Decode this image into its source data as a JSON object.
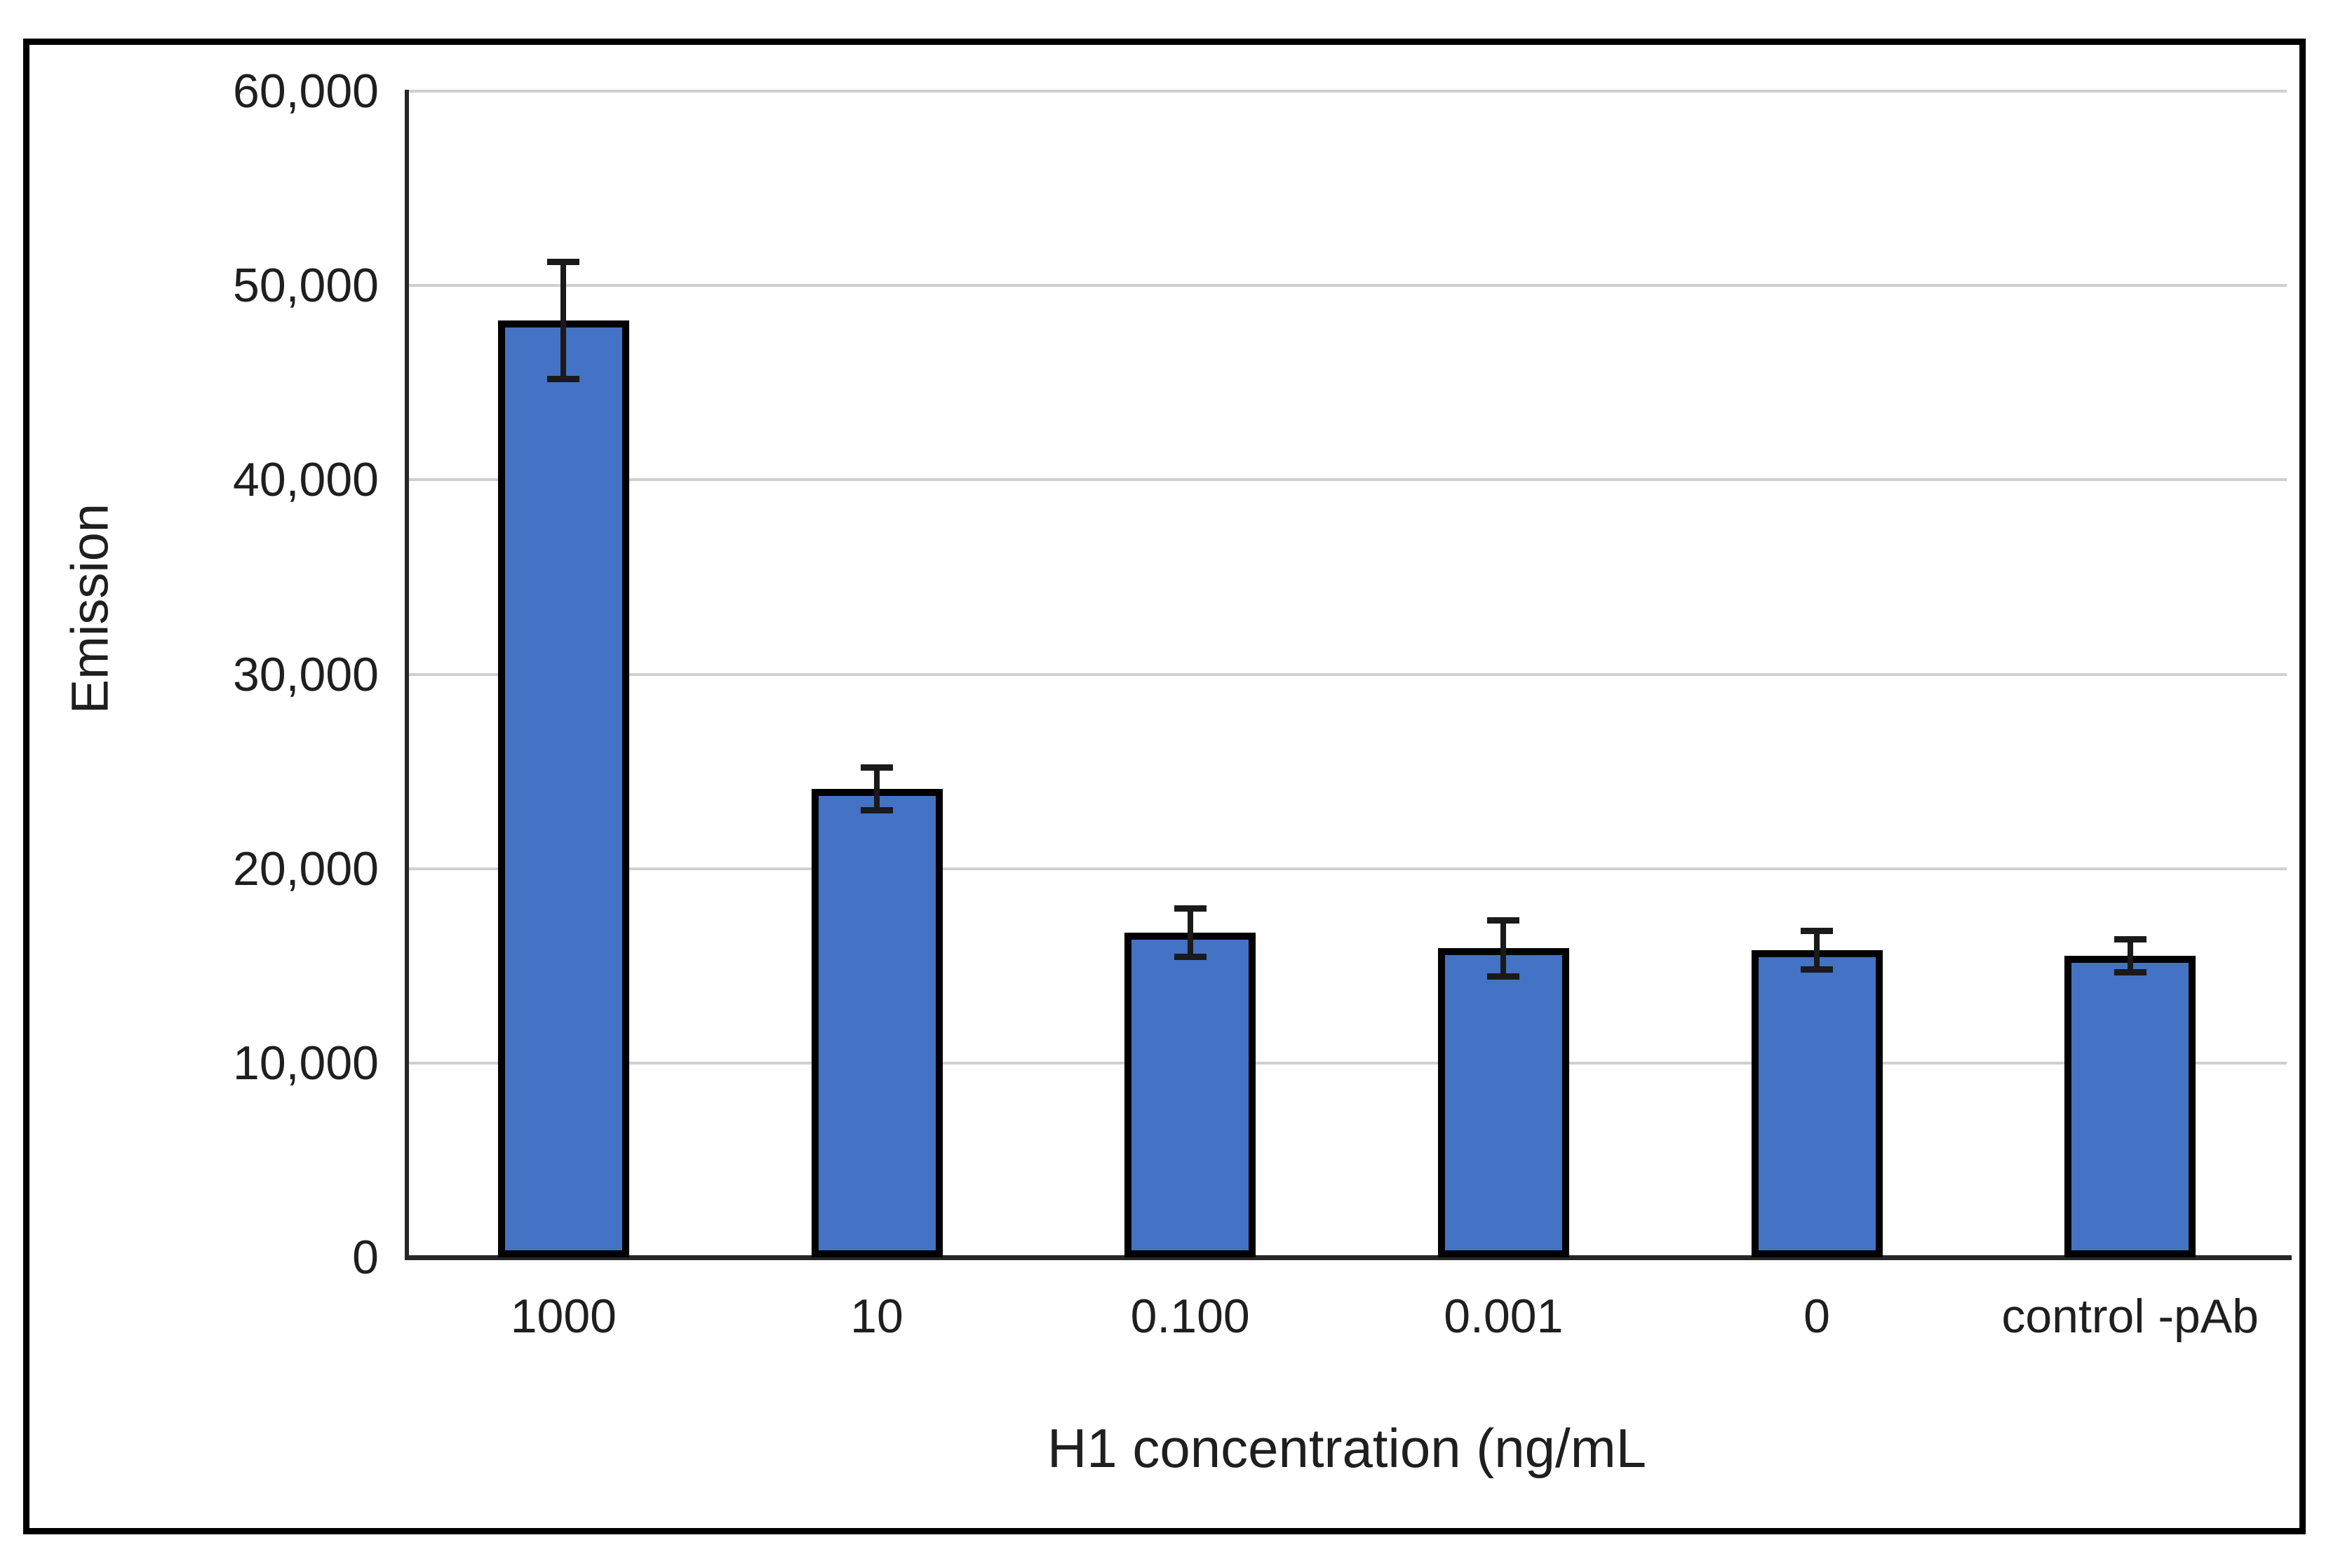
{
  "chart_data": {
    "type": "bar",
    "title": "",
    "xlabel": "H1 concentration (ng/mL",
    "ylabel": "Emission",
    "categories": [
      "1000",
      "10",
      "0.100",
      "0.001",
      "0",
      "control -pAb"
    ],
    "values": [
      48200,
      24100,
      16700,
      15900,
      15800,
      15500
    ],
    "error_bars": [
      3000,
      1100,
      1250,
      1450,
      1000,
      850
    ],
    "ylim": [
      0,
      60000
    ],
    "ytick_step": 10000,
    "y_tick_labels": [
      "0",
      "10,000",
      "20,000",
      "30,000",
      "40,000",
      "50,000",
      "60,000"
    ],
    "grid": "horizontal",
    "legend_position": "none",
    "colors": {
      "bar_fill": "#4472c4",
      "bar_border": "#000000",
      "error_bar": "#1a1a1a",
      "gridline": "#cfcfcf",
      "axis_line": "#262626",
      "text": "#1f1f1f",
      "figure_border": "#000000",
      "background": "#ffffff"
    }
  }
}
